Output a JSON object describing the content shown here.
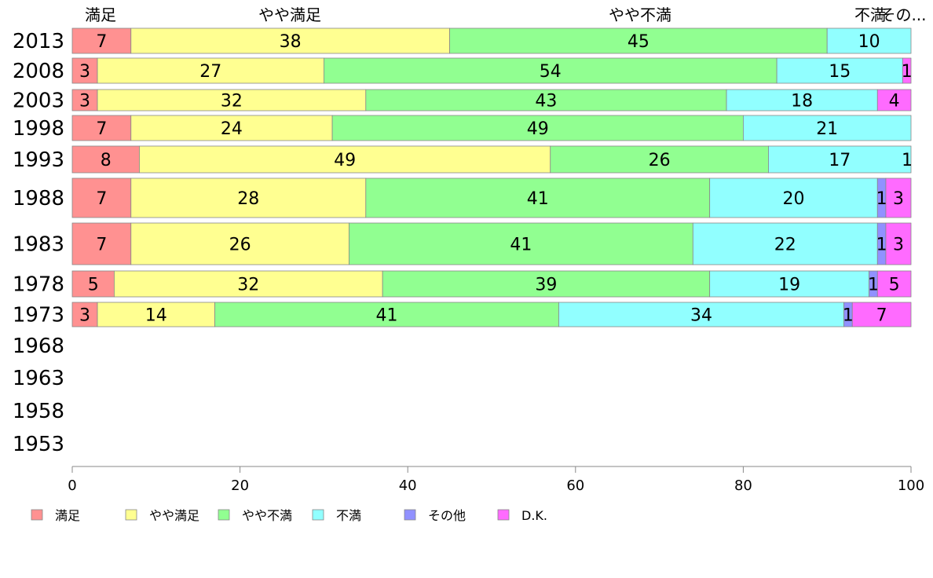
{
  "chart_data": {
    "type": "bar",
    "orientation": "horizontal",
    "stacked": true,
    "xlim": [
      0,
      100
    ],
    "x_ticks": [
      0,
      20,
      40,
      60,
      80,
      100
    ],
    "categories": [
      "2013",
      "2008",
      "2003",
      "1998",
      "1993",
      "1988",
      "1983",
      "1978",
      "1973",
      "1968",
      "1963",
      "1958",
      "1953"
    ],
    "top_labels": [
      "満足",
      "やや満足",
      "やや不満",
      "不満",
      "その..."
    ],
    "legend_position": "bottom",
    "series": [
      {
        "name": "満足",
        "color": "#ff9191",
        "values": [
          7,
          3,
          3,
          7,
          8,
          7,
          7,
          5,
          3,
          null,
          null,
          null,
          null
        ]
      },
      {
        "name": "やや満足",
        "color": "#ffff91",
        "values": [
          38,
          27,
          32,
          24,
          49,
          28,
          26,
          32,
          14,
          null,
          null,
          null,
          null
        ]
      },
      {
        "name": "やや不満",
        "color": "#91ff91",
        "values": [
          45,
          54,
          43,
          49,
          26,
          41,
          41,
          39,
          41,
          null,
          null,
          null,
          null
        ]
      },
      {
        "name": "不満",
        "color": "#91ffff",
        "values": [
          10,
          15,
          18,
          21,
          17,
          20,
          22,
          19,
          34,
          null,
          null,
          null,
          null
        ]
      },
      {
        "name": "その他",
        "color": "#9191ff",
        "values": [
          0,
          0,
          0,
          0,
          0,
          1,
          1,
          1,
          1,
          null,
          null,
          null,
          null
        ]
      },
      {
        "name": "D.K.",
        "color": "#ff6bff",
        "values": [
          0,
          1,
          4,
          0,
          1,
          3,
          3,
          5,
          7,
          null,
          null,
          null,
          null
        ]
      }
    ]
  }
}
